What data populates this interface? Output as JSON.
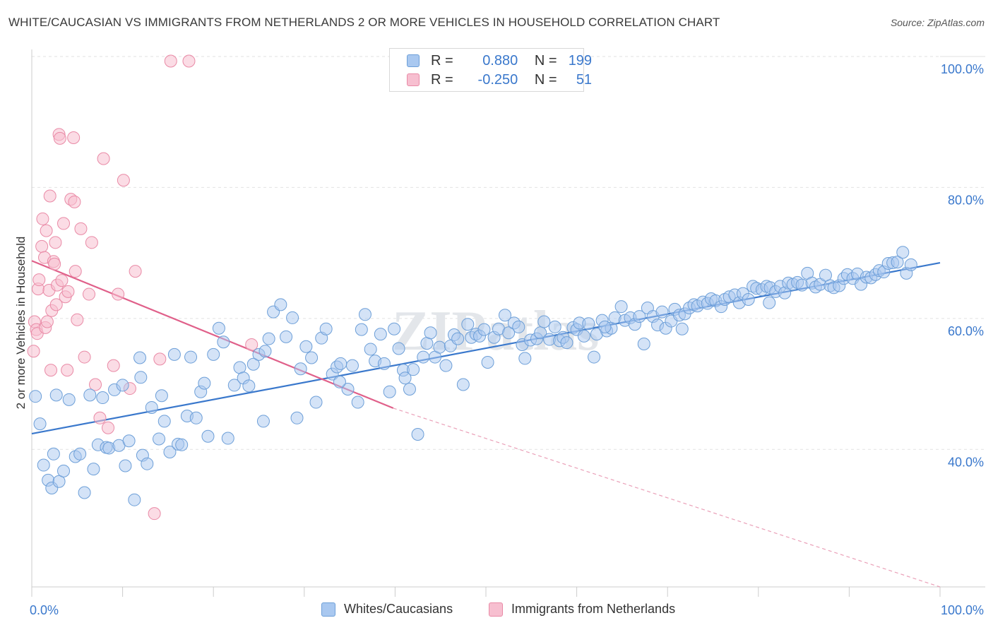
{
  "title": "WHITE/CAUCASIAN VS IMMIGRANTS FROM NETHERLANDS 2 OR MORE VEHICLES IN HOUSEHOLD CORRELATION CHART",
  "source": "Source: ZipAtlas.com",
  "watermark": "ZIPatlas",
  "legend": {
    "rows": [
      {
        "r_label": "R =",
        "r_value": "0.880",
        "n_label": "N =",
        "n_value": "199",
        "color": "#a9c8f0",
        "border": "#6d9fd8"
      },
      {
        "r_label": "R =",
        "r_value": "-0.250",
        "n_label": "N =",
        "n_value": "51",
        "color": "#f7bfd0",
        "border": "#e98aa6"
      }
    ]
  },
  "bottom_legend": {
    "items": [
      {
        "label": "Whites/Caucasians",
        "color": "#a9c8f0",
        "border": "#6d9fd8"
      },
      {
        "label": "Immigrants from Netherlands",
        "color": "#f7bfd0",
        "border": "#e98aa6"
      }
    ]
  },
  "chart_data": {
    "type": "scatter",
    "title": "WHITE/CAUCASIAN VS IMMIGRANTS FROM NETHERLANDS 2 OR MORE VEHICLES IN HOUSEHOLD CORRELATION CHART",
    "xlabel": "",
    "ylabel": "2 or more Vehicles in Household",
    "xlim": [
      0,
      100
    ],
    "ylim": [
      19,
      100
    ],
    "x_tick_labels": [
      "0.0%",
      "100.0%"
    ],
    "y_ticks": [
      40,
      60,
      80,
      100
    ],
    "y_tick_labels": [
      "40.0%",
      "60.0%",
      "80.0%",
      "100.0%"
    ],
    "grid": true,
    "colors": {
      "blue": "#3a78cc",
      "blue_fill": "#a9c8f0",
      "pink": "#e0608a",
      "pink_fill": "#f7bfd0"
    },
    "series": [
      {
        "name": "Whites/Caucasians",
        "trend": {
          "x0": 0,
          "y0": 42.4,
          "x1": 100,
          "y1": 68.5
        },
        "points": [
          [
            0.4,
            48.1
          ],
          [
            0.9,
            43.9
          ],
          [
            1.3,
            37.6
          ],
          [
            1.8,
            35.3
          ],
          [
            2.2,
            34.1
          ],
          [
            2.4,
            39.3
          ],
          [
            2.7,
            48.3
          ],
          [
            3.0,
            35.1
          ],
          [
            3.5,
            36.7
          ],
          [
            4.1,
            47.6
          ],
          [
            4.8,
            38.9
          ],
          [
            5.3,
            39.3
          ],
          [
            5.8,
            33.4
          ],
          [
            6.4,
            48.3
          ],
          [
            6.8,
            37.0
          ],
          [
            7.3,
            40.7
          ],
          [
            7.8,
            47.9
          ],
          [
            8.2,
            40.3
          ],
          [
            8.5,
            40.2
          ],
          [
            9.1,
            49.1
          ],
          [
            9.6,
            40.6
          ],
          [
            10.0,
            49.8
          ],
          [
            10.3,
            37.5
          ],
          [
            10.7,
            41.3
          ],
          [
            11.3,
            32.3
          ],
          [
            11.9,
            54.0
          ],
          [
            12.2,
            39.1
          ],
          [
            12.7,
            37.8
          ],
          [
            13.2,
            46.4
          ],
          [
            14.0,
            41.6
          ],
          [
            14.3,
            48.2
          ],
          [
            14.6,
            44.3
          ],
          [
            15.2,
            39.6
          ],
          [
            15.7,
            54.5
          ],
          [
            16.1,
            40.8
          ],
          [
            16.5,
            40.7
          ],
          [
            17.1,
            45.1
          ],
          [
            17.5,
            54.1
          ],
          [
            18.1,
            44.8
          ],
          [
            18.6,
            48.8
          ],
          [
            19.0,
            50.1
          ],
          [
            19.4,
            42.0
          ],
          [
            20.0,
            54.5
          ],
          [
            20.6,
            58.5
          ],
          [
            21.1,
            56.4
          ],
          [
            21.6,
            41.7
          ],
          [
            22.3,
            49.8
          ],
          [
            22.9,
            52.5
          ],
          [
            23.3,
            50.9
          ],
          [
            23.9,
            49.7
          ],
          [
            24.4,
            53.0
          ],
          [
            25.0,
            54.5
          ],
          [
            25.5,
            44.3
          ],
          [
            26.1,
            56.9
          ],
          [
            26.6,
            61.0
          ],
          [
            27.4,
            62.1
          ],
          [
            28.0,
            57.2
          ],
          [
            28.7,
            60.1
          ],
          [
            29.2,
            44.8
          ],
          [
            29.6,
            52.3
          ],
          [
            30.2,
            55.7
          ],
          [
            30.8,
            54.0
          ],
          [
            31.3,
            47.2
          ],
          [
            31.9,
            57.0
          ],
          [
            32.4,
            58.4
          ],
          [
            33.1,
            51.5
          ],
          [
            33.6,
            52.6
          ],
          [
            34.0,
            53.1
          ],
          [
            34.8,
            49.2
          ],
          [
            35.3,
            52.8
          ],
          [
            35.9,
            47.2
          ],
          [
            36.3,
            58.3
          ],
          [
            36.7,
            60.6
          ],
          [
            37.3,
            55.3
          ],
          [
            37.8,
            53.5
          ],
          [
            38.4,
            57.6
          ],
          [
            38.8,
            53.1
          ],
          [
            39.4,
            48.8
          ],
          [
            39.9,
            58.4
          ],
          [
            40.4,
            55.4
          ],
          [
            40.9,
            52.1
          ],
          [
            41.1,
            50.9
          ],
          [
            41.6,
            49.2
          ],
          [
            42.0,
            52.2
          ],
          [
            42.5,
            42.3
          ],
          [
            43.1,
            54.1
          ],
          [
            43.5,
            56.2
          ],
          [
            43.9,
            57.8
          ],
          [
            44.4,
            54.1
          ],
          [
            44.9,
            55.6
          ],
          [
            45.6,
            52.8
          ],
          [
            46.1,
            55.8
          ],
          [
            46.5,
            57.5
          ],
          [
            46.9,
            56.9
          ],
          [
            47.5,
            49.9
          ],
          [
            48.0,
            59.1
          ],
          [
            48.4,
            57.1
          ],
          [
            48.9,
            57.6
          ],
          [
            49.3,
            57.3
          ],
          [
            49.8,
            58.3
          ],
          [
            50.2,
            53.3
          ],
          [
            50.9,
            57.1
          ],
          [
            51.4,
            58.4
          ],
          [
            52.1,
            60.5
          ],
          [
            52.5,
            57.8
          ],
          [
            53.1,
            59.3
          ],
          [
            53.6,
            58.7
          ],
          [
            54.0,
            56.0
          ],
          [
            54.3,
            53.9
          ],
          [
            54.9,
            56.7
          ],
          [
            55.6,
            56.9
          ],
          [
            56.0,
            57.8
          ],
          [
            56.4,
            59.5
          ],
          [
            57.0,
            56.8
          ],
          [
            57.6,
            58.7
          ],
          [
            58.1,
            56.6
          ],
          [
            58.5,
            57.1
          ],
          [
            58.9,
            56.3
          ],
          [
            59.6,
            58.6
          ],
          [
            60.0,
            58.3
          ],
          [
            60.3,
            59.3
          ],
          [
            60.8,
            57.3
          ],
          [
            61.3,
            59.2
          ],
          [
            61.9,
            54.1
          ],
          [
            62.2,
            57.6
          ],
          [
            62.8,
            59.7
          ],
          [
            63.3,
            58.1
          ],
          [
            63.8,
            58.5
          ],
          [
            64.2,
            60.1
          ],
          [
            64.9,
            61.8
          ],
          [
            65.3,
            59.7
          ],
          [
            65.9,
            60.1
          ],
          [
            66.4,
            59.1
          ],
          [
            66.9,
            60.3
          ],
          [
            67.4,
            56.1
          ],
          [
            67.8,
            61.6
          ],
          [
            68.4,
            60.3
          ],
          [
            68.9,
            59.0
          ],
          [
            69.4,
            61.0
          ],
          [
            69.8,
            58.5
          ],
          [
            70.4,
            59.6
          ],
          [
            70.8,
            61.4
          ],
          [
            71.3,
            60.5
          ],
          [
            71.9,
            60.7
          ],
          [
            72.4,
            61.6
          ],
          [
            72.9,
            62.1
          ],
          [
            73.3,
            61.9
          ],
          [
            73.9,
            62.5
          ],
          [
            74.4,
            62.3
          ],
          [
            74.8,
            63.0
          ],
          [
            75.3,
            62.7
          ],
          [
            75.9,
            61.8
          ],
          [
            76.3,
            62.9
          ],
          [
            76.8,
            63.3
          ],
          [
            77.4,
            63.6
          ],
          [
            77.9,
            62.4
          ],
          [
            78.3,
            63.8
          ],
          [
            78.9,
            62.9
          ],
          [
            79.4,
            64.9
          ],
          [
            79.8,
            64.6
          ],
          [
            80.4,
            64.4
          ],
          [
            80.9,
            64.9
          ],
          [
            81.3,
            64.7
          ],
          [
            81.9,
            64.1
          ],
          [
            82.4,
            64.9
          ],
          [
            82.9,
            63.9
          ],
          [
            83.3,
            65.4
          ],
          [
            83.8,
            65.2
          ],
          [
            84.3,
            65.5
          ],
          [
            84.8,
            65.1
          ],
          [
            85.4,
            66.9
          ],
          [
            85.9,
            65.4
          ],
          [
            86.3,
            64.8
          ],
          [
            86.8,
            65.2
          ],
          [
            87.4,
            66.6
          ],
          [
            87.9,
            65.0
          ],
          [
            88.3,
            64.7
          ],
          [
            88.9,
            65.0
          ],
          [
            89.4,
            66.1
          ],
          [
            89.8,
            66.7
          ],
          [
            90.4,
            66.1
          ],
          [
            90.9,
            66.8
          ],
          [
            91.3,
            65.2
          ],
          [
            91.9,
            66.3
          ],
          [
            92.4,
            66.2
          ],
          [
            92.9,
            66.7
          ],
          [
            93.3,
            67.3
          ],
          [
            93.8,
            67.1
          ],
          [
            94.3,
            68.4
          ],
          [
            94.8,
            68.5
          ],
          [
            95.3,
            68.6
          ],
          [
            95.9,
            70.1
          ],
          [
            96.3,
            66.9
          ],
          [
            96.8,
            68.2
          ],
          [
            63.1,
            58.7
          ],
          [
            33.9,
            50.3
          ],
          [
            12.0,
            51.0
          ],
          [
            71.6,
            58.4
          ],
          [
            81.2,
            62.4
          ],
          [
            25.7,
            55.0
          ]
        ]
      },
      {
        "name": "Immigrants from Netherlands",
        "trend": {
          "x0": 0,
          "y0": 68.8,
          "x1": 39.8,
          "y1": 46.3
        },
        "trend_dashed": {
          "x0": 39.8,
          "y0": 46.3,
          "x1": 100,
          "y1": 19.0
        },
        "points": [
          [
            0.2,
            55.0
          ],
          [
            0.3,
            59.5
          ],
          [
            0.5,
            58.3
          ],
          [
            0.6,
            57.7
          ],
          [
            0.7,
            64.5
          ],
          [
            0.8,
            65.9
          ],
          [
            1.1,
            71.0
          ],
          [
            1.2,
            75.2
          ],
          [
            1.4,
            69.3
          ],
          [
            1.5,
            58.6
          ],
          [
            1.6,
            73.4
          ],
          [
            1.7,
            59.5
          ],
          [
            1.9,
            64.3
          ],
          [
            2.0,
            78.7
          ],
          [
            2.1,
            52.1
          ],
          [
            2.2,
            61.2
          ],
          [
            2.4,
            68.7
          ],
          [
            2.5,
            68.3
          ],
          [
            2.6,
            71.6
          ],
          [
            2.7,
            62.1
          ],
          [
            2.8,
            65.1
          ],
          [
            3.0,
            88.1
          ],
          [
            3.1,
            87.5
          ],
          [
            3.3,
            65.8
          ],
          [
            3.5,
            74.5
          ],
          [
            3.7,
            63.3
          ],
          [
            3.9,
            52.1
          ],
          [
            4.0,
            64.1
          ],
          [
            4.3,
            78.2
          ],
          [
            4.6,
            87.6
          ],
          [
            4.7,
            77.8
          ],
          [
            4.8,
            67.2
          ],
          [
            5.0,
            59.8
          ],
          [
            5.4,
            73.7
          ],
          [
            5.8,
            54.1
          ],
          [
            6.3,
            63.7
          ],
          [
            6.6,
            71.6
          ],
          [
            7.0,
            49.9
          ],
          [
            7.5,
            44.8
          ],
          [
            7.9,
            84.4
          ],
          [
            8.4,
            43.3
          ],
          [
            9.0,
            52.8
          ],
          [
            9.5,
            63.7
          ],
          [
            10.1,
            81.1
          ],
          [
            10.8,
            49.3
          ],
          [
            11.4,
            67.2
          ],
          [
            13.5,
            30.2
          ],
          [
            14.1,
            53.8
          ],
          [
            15.3,
            99.3
          ],
          [
            17.3,
            99.3
          ],
          [
            24.2,
            56.0
          ]
        ]
      }
    ]
  }
}
